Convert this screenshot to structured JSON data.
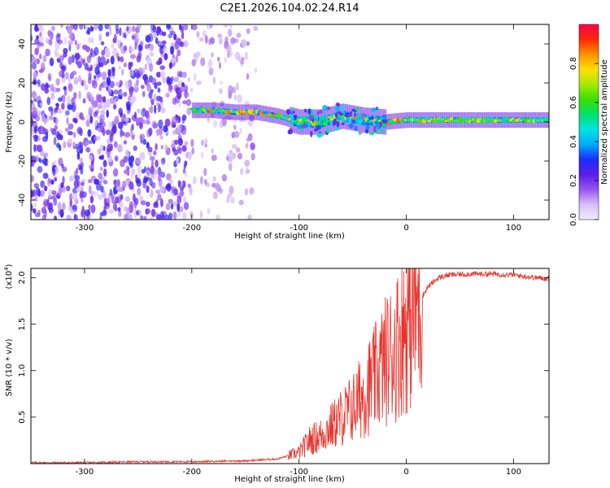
{
  "figure_title": "C2E1.2026.104.02.24.R14",
  "chart_data": [
    {
      "type": "heatmap",
      "title": "C2E1.2026.104.02.24.R14",
      "xlabel": "Height of straight line (km)",
      "ylabel": "Frequency (Hz)",
      "xlim": [
        -350,
        133
      ],
      "ylim": [
        -50,
        50
      ],
      "x_ticks": [
        -300,
        -200,
        -100,
        0,
        100
      ],
      "y_ticks": [
        -40,
        -20,
        0,
        20,
        40
      ],
      "colorbar": {
        "label": "Normalized spectral amplitude",
        "range": [
          0,
          1
        ],
        "ticks": [
          0.0,
          0.2,
          0.4,
          0.6,
          0.8
        ],
        "colors": [
          "#f2eaff",
          "#d7bff7",
          "#9a55f0",
          "#5a1ee8",
          "#1e2bff",
          "#00aaff",
          "#00e5e0",
          "#00e070",
          "#39e000",
          "#a8e800",
          "#ffe000",
          "#ff9000",
          "#ff2a00",
          "#ff0050"
        ]
      },
      "ridge": {
        "x": [
          -200,
          -180,
          -160,
          -140,
          -120,
          -100,
          -80,
          -60,
          -40,
          -20,
          0,
          20,
          40,
          60,
          80,
          100,
          120,
          133
        ],
        "y": [
          6,
          6,
          5,
          5,
          3,
          0,
          0,
          3,
          1,
          0,
          1,
          1,
          1,
          1,
          1,
          1,
          1,
          1
        ]
      }
    },
    {
      "type": "line",
      "xlabel": "Height of straight line (km)",
      "ylabel": "SNR (10 * v/v)",
      "y_multiplier": "(x10",
      "y_multiplier_exp": "4",
      "xlim": [
        -350,
        133
      ],
      "ylim": [
        0,
        2.1
      ],
      "x_ticks": [
        -300,
        -200,
        -100,
        0,
        100
      ],
      "y_ticks": [
        0.5,
        1.0,
        1.5,
        2.0
      ],
      "series": [
        {
          "color": "#e8322c",
          "x": [
            -350,
            -300,
            -250,
            -200,
            -150,
            -120,
            -100,
            -90,
            -80,
            -70,
            -60,
            -50,
            -40,
            -30,
            -20,
            -10,
            0,
            10,
            20,
            30,
            40,
            60,
            80,
            100,
            120,
            133
          ],
          "y": [
            0.01,
            0.01,
            0.02,
            0.02,
            0.03,
            0.05,
            0.12,
            0.25,
            0.3,
            0.4,
            0.5,
            0.6,
            0.75,
            0.9,
            1.1,
            1.25,
            1.5,
            1.7,
            1.9,
            2.0,
            2.03,
            2.04,
            2.04,
            2.03,
            2.0,
            1.99
          ]
        }
      ]
    }
  ]
}
